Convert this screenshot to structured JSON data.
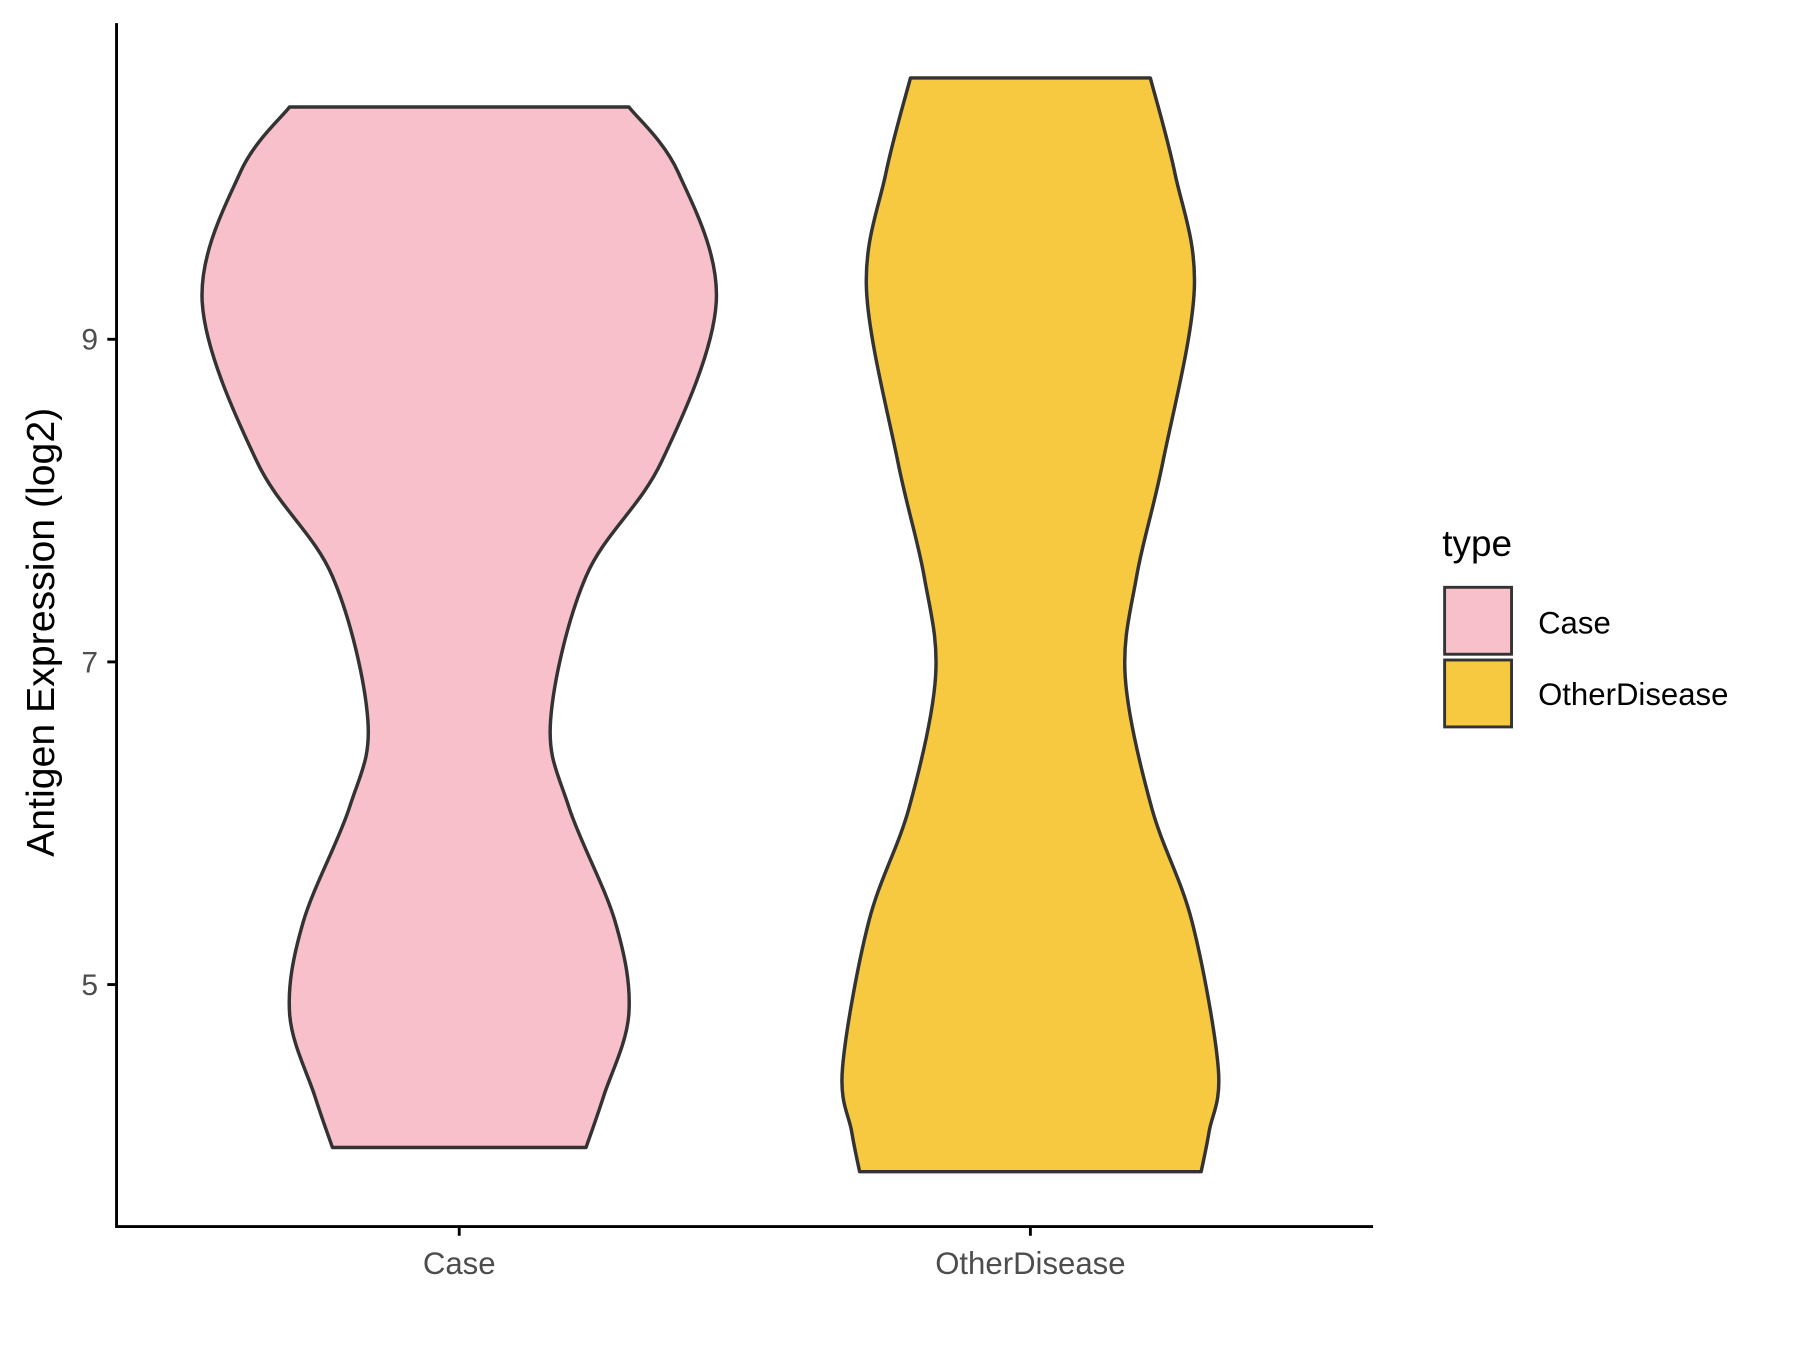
{
  "chart_data": {
    "type": "violin",
    "title": "",
    "xlabel": "",
    "ylabel": "Antigen Expression (log2)",
    "categories": [
      "Case",
      "OtherDisease"
    ],
    "yticks": [
      5,
      7,
      9
    ],
    "ylim": [
      3.5,
      10.96
    ],
    "xlim": [
      0.4,
      2.6
    ],
    "grid": false,
    "legend": {
      "title": "type",
      "placement": "right",
      "entries": [
        "Case",
        "OtherDisease"
      ]
    },
    "colors": {
      "Case": "#F8C0CB",
      "OtherDisease": "#F7C940",
      "outline": "#333333"
    },
    "series": [
      {
        "name": "Case",
        "profile_y": [
          10.44,
          10.03,
          9.23,
          8.24,
          7.53,
          6.64,
          6.1,
          5.39,
          4.82,
          4.31,
          3.99
        ],
        "profile_halfwidth": [
          0.297,
          0.384,
          0.45,
          0.354,
          0.222,
          0.16,
          0.192,
          0.273,
          0.297,
          0.253,
          0.222
        ]
      },
      {
        "name": "OtherDisease",
        "profile_y": [
          10.62,
          10.03,
          9.31,
          8.24,
          7.53,
          6.91,
          6.1,
          5.39,
          4.48,
          4.09,
          3.84
        ],
        "profile_halfwidth": [
          0.21,
          0.253,
          0.287,
          0.232,
          0.186,
          0.166,
          0.212,
          0.283,
          0.329,
          0.313,
          0.299
        ]
      }
    ]
  }
}
